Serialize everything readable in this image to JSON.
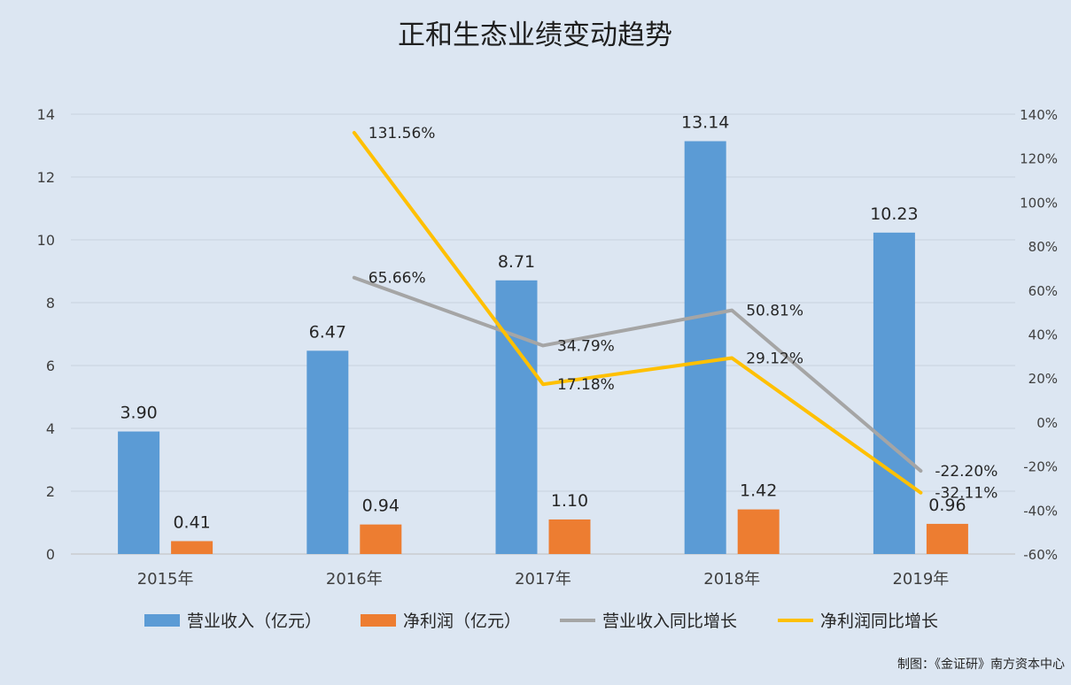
{
  "chart_data": {
    "type": "bar",
    "title": "正和生态业绩变动趋势",
    "categories": [
      "2015年",
      "2016年",
      "2017年",
      "2018年",
      "2019年"
    ],
    "series": [
      {
        "name": "营业收入（亿元）",
        "type": "bar",
        "axis": "left",
        "color": "#5b9bd5",
        "values": [
          3.9,
          6.47,
          8.71,
          13.14,
          10.23
        ],
        "labels": [
          "3.90",
          "6.47",
          "8.71",
          "13.14",
          "10.23"
        ]
      },
      {
        "name": "净利润（亿元）",
        "type": "bar",
        "axis": "left",
        "color": "#ed7d31",
        "values": [
          0.41,
          0.94,
          1.1,
          1.42,
          0.96
        ],
        "labels": [
          "0.41",
          "0.94",
          "1.10",
          "1.42",
          "0.96"
        ]
      },
      {
        "name": "营业收入同比增长",
        "type": "line",
        "axis": "right",
        "color": "#a5a5a5",
        "values": [
          null,
          65.66,
          34.79,
          50.81,
          -22.2
        ],
        "labels": [
          null,
          "65.66%",
          "34.79%",
          "50.81%",
          "-22.20%"
        ]
      },
      {
        "name": "净利润同比增长",
        "type": "line",
        "axis": "right",
        "color": "#ffc000",
        "values": [
          null,
          131.56,
          17.18,
          29.12,
          -32.11
        ],
        "labels": [
          null,
          "131.56%",
          "17.18%",
          "29.12%",
          "-32.11%"
        ]
      }
    ],
    "y_left": {
      "min": 0,
      "max": 14,
      "ticks": [
        "0",
        "2",
        "4",
        "6",
        "8",
        "10",
        "12",
        "14"
      ]
    },
    "y_right": {
      "min": -60,
      "max": 140,
      "ticks": [
        "-60%",
        "-40%",
        "-20%",
        "0%",
        "20%",
        "40%",
        "60%",
        "80%",
        "100%",
        "120%",
        "140%"
      ]
    },
    "grid": true,
    "legend_position": "bottom"
  },
  "credit": "制图：《金证研》南方资本中心"
}
